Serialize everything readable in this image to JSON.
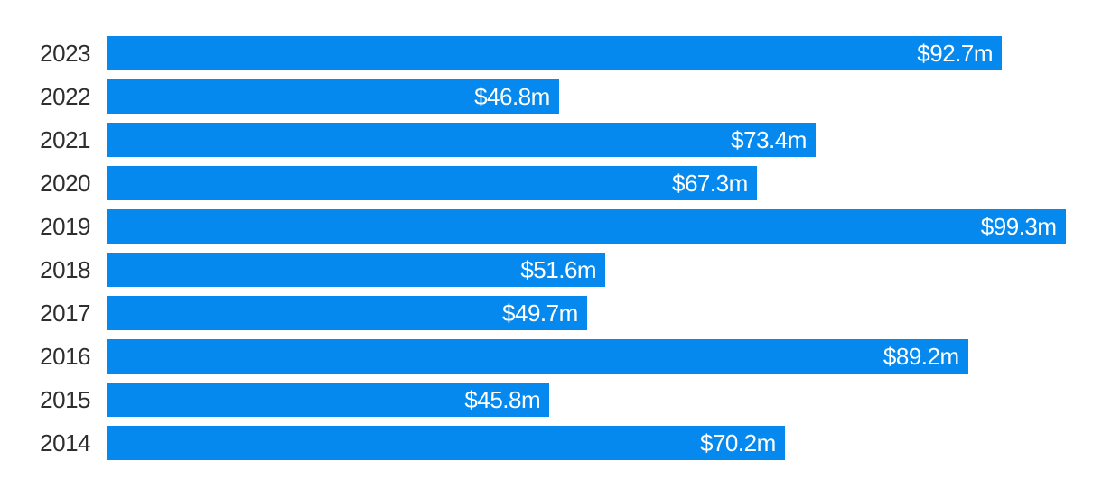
{
  "chart_data": {
    "type": "bar",
    "orientation": "horizontal",
    "categories": [
      "2023",
      "2022",
      "2021",
      "2020",
      "2019",
      "2018",
      "2017",
      "2016",
      "2015",
      "2014"
    ],
    "values": [
      92.7,
      46.8,
      73.4,
      67.3,
      99.3,
      51.6,
      49.7,
      89.2,
      45.8,
      70.2
    ],
    "value_labels": [
      "$92.7m",
      "$46.8m",
      "$73.4m",
      "$67.3m",
      "$99.3m",
      "$51.6m",
      "$49.7m",
      "$89.2m",
      "$45.8m",
      "$70.2m"
    ],
    "unit": "$m",
    "xlim": [
      0,
      100
    ],
    "grid": false,
    "legend": false,
    "axis_labels_visible": false,
    "bar_color": "#0589ee",
    "category_label_color": "#2e2e2e",
    "value_label_color": "#ffffff",
    "background_color": "#ffffff",
    "value_label_position": "inside-end"
  }
}
